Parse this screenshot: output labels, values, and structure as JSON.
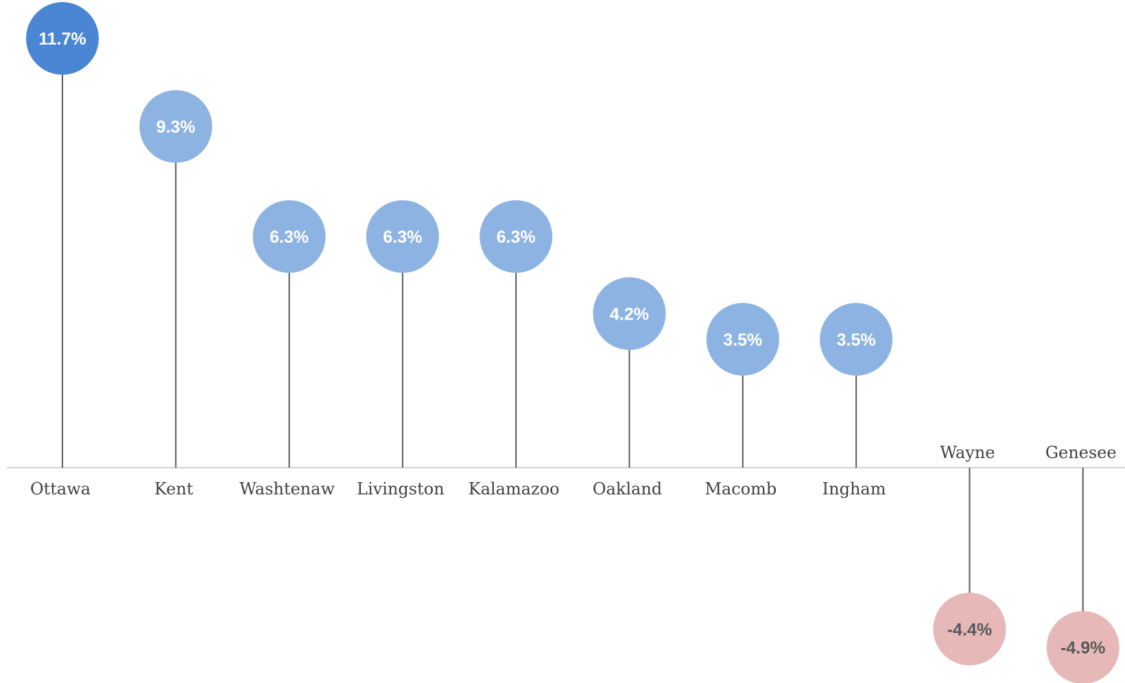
{
  "chart_data": {
    "type": "lollipop",
    "categories": [
      "Ottawa",
      "Kent",
      "Washtenaw",
      "Livingston",
      "Kalamazoo",
      "Oakland",
      "Macomb",
      "Ingham",
      "Wayne",
      "Genesee"
    ],
    "values": [
      11.7,
      9.3,
      6.3,
      6.3,
      6.3,
      4.2,
      3.5,
      3.5,
      -4.4,
      -4.9
    ],
    "value_labels": [
      "11.7%",
      "9.3%",
      "6.3%",
      "6.3%",
      "6.3%",
      "4.2%",
      "3.5%",
      "3.5%",
      "-4.4%",
      "-4.9%"
    ],
    "title": "",
    "xlabel": "",
    "ylabel": "",
    "ylim": [
      -5,
      12
    ],
    "grid": false,
    "legend": "none",
    "colors": {
      "highlight": "#4a86d4",
      "positive": "#8db3e2",
      "negative": "#e6b8b7",
      "positive_text": "#ffffff",
      "negative_text": "#595959",
      "stem": "#595959",
      "axis": "#d0d0d0",
      "label": "#404040"
    }
  }
}
